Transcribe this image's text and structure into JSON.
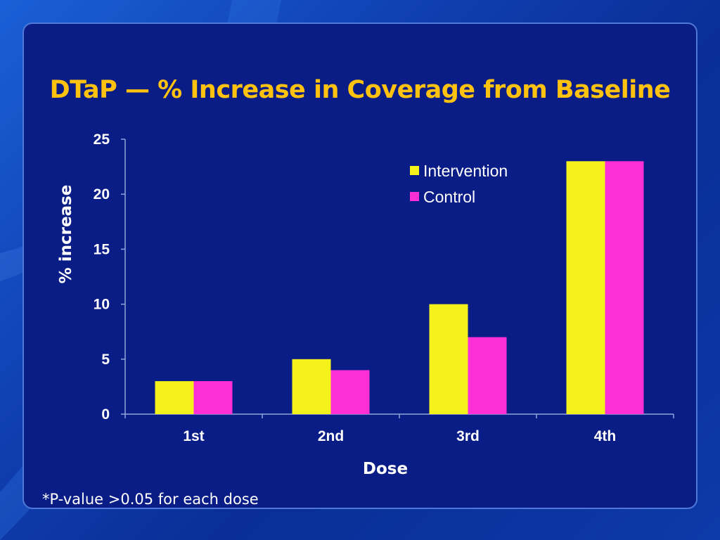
{
  "slide": {
    "title": "DTaP — % Increase in Coverage from Baseline",
    "footnote": "*P-value >0.05 for each dose"
  },
  "colors": {
    "title": "#ffc20e",
    "intervention": "#f4f21a",
    "control": "#ff2fd6",
    "panel": "#0a1d86"
  },
  "chart_data": {
    "type": "bar",
    "title": "DTaP — % Increase in Coverage from Baseline",
    "xlabel": "Dose",
    "ylabel": "% increase",
    "categories": [
      "1st",
      "2nd",
      "3rd",
      "4th"
    ],
    "series": [
      {
        "name": "Intervention",
        "color": "#f4f21a",
        "values": [
          3,
          5,
          10,
          23
        ]
      },
      {
        "name": "Control",
        "color": "#ff2fd6",
        "values": [
          3,
          4,
          7,
          23
        ]
      }
    ],
    "ylim": [
      0,
      25
    ],
    "yticks": [
      0,
      5,
      10,
      15,
      20,
      25
    ],
    "grid": false,
    "legend": "top-right"
  }
}
